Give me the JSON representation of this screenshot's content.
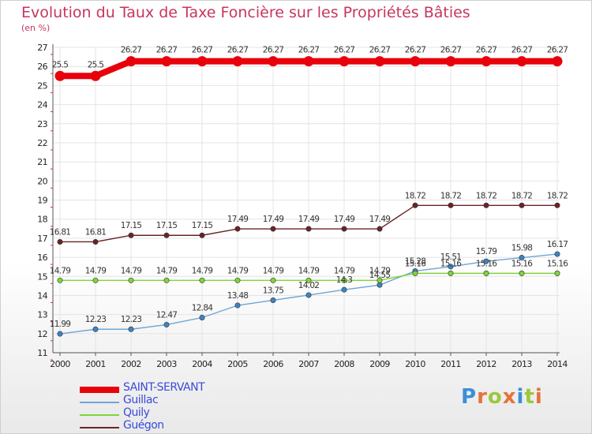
{
  "title": "Evolution du Taux de Taxe Foncière sur les Propriétés Bâties",
  "unit": "(en %)",
  "logo": "Proxiti",
  "chart_data": {
    "type": "line",
    "title": "Evolution du Taux de Taxe Foncière sur les Propriétés Bâties",
    "ylabel": "(en %)",
    "xlabel": "",
    "ylim": [
      11,
      27
    ],
    "yticks": [
      11,
      12,
      13,
      14,
      15,
      16,
      17,
      18,
      19,
      20,
      21,
      22,
      23,
      24,
      25,
      26,
      27
    ],
    "x": [
      "2000",
      "2001",
      "2002",
      "2003",
      "2004",
      "2005",
      "2006",
      "2007",
      "2008",
      "2009",
      "2010",
      "2011",
      "2012",
      "2013",
      "2014"
    ],
    "series": [
      {
        "name": "SAINT-SERVANT",
        "color": "#e8000b",
        "thick": true,
        "values": [
          25.5,
          25.5,
          26.27,
          26.27,
          26.27,
          26.27,
          26.27,
          26.27,
          26.27,
          26.27,
          26.27,
          26.27,
          26.27,
          26.27,
          26.27
        ],
        "labels": [
          "25.5",
          "25.5",
          "26.27",
          "26.27",
          "26.27",
          "26.27",
          "26.27",
          "26.27",
          "26.27",
          "26.27",
          "26.27",
          "26.27",
          "26.27",
          "26.27",
          "26.27"
        ]
      },
      {
        "name": "Guillac",
        "color": "#6fa5d6",
        "marker": "#3c84c4",
        "values": [
          11.99,
          12.23,
          12.23,
          12.47,
          12.84,
          13.48,
          13.75,
          14.02,
          14.3,
          14.55,
          15.28,
          15.51,
          15.79,
          15.98,
          16.17
        ],
        "labels": [
          "11.99",
          "12.23",
          "12.23",
          "12.47",
          "12.84",
          "13.48",
          "13.75",
          "14.02",
          "14.3",
          "14.55",
          "15.28",
          "15.51",
          "15.79",
          "15.98",
          "16.17"
        ]
      },
      {
        "name": "Quily",
        "color": "#7fd43a",
        "marker": "#7fd43a",
        "values": [
          14.79,
          14.79,
          14.79,
          14.79,
          14.79,
          14.79,
          14.79,
          14.79,
          14.79,
          14.79,
          15.16,
          15.16,
          15.16,
          15.16,
          15.16
        ],
        "labels": [
          "14.79",
          "14.79",
          "14.79",
          "14.79",
          "14.79",
          "14.79",
          "14.79",
          "14.79",
          "14.79",
          "14.79",
          "15.16",
          "15.16",
          "15.16",
          "15.16",
          "15.16"
        ]
      },
      {
        "name": "Guégon",
        "color": "#6b2326",
        "marker": "#6b2326",
        "values": [
          16.81,
          16.81,
          17.15,
          17.15,
          17.15,
          17.49,
          17.49,
          17.49,
          17.49,
          17.49,
          18.72,
          18.72,
          18.72,
          18.72,
          18.72
        ],
        "labels": [
          "16.81",
          "16.81",
          "17.15",
          "17.15",
          "17.15",
          "17.49",
          "17.49",
          "17.49",
          "17.49",
          "17.49",
          "18.72",
          "18.72",
          "18.72",
          "18.72",
          "18.72"
        ]
      }
    ],
    "legend_position": "bottom-left"
  }
}
